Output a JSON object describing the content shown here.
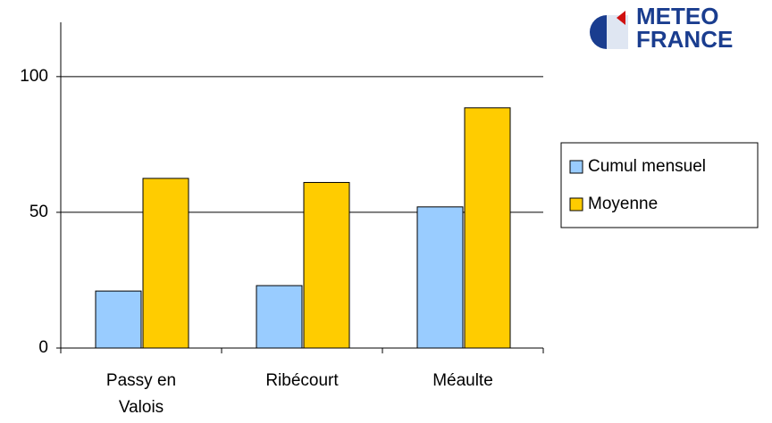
{
  "chart_data": {
    "type": "bar",
    "categories": [
      "Passy en Valois",
      "Ribécourt",
      "Méaulte"
    ],
    "series": [
      {
        "name": "Cumul mensuel",
        "color": "#99ccff",
        "values": [
          21,
          23,
          52
        ]
      },
      {
        "name": "Moyenne",
        "color": "#ffcc00",
        "values": [
          62.5,
          61,
          88.5
        ]
      }
    ],
    "ylim": [
      0,
      120
    ],
    "yticks": [
      0,
      50,
      100
    ],
    "grid": true,
    "legend": "right"
  },
  "logo": {
    "lines": [
      "METEO",
      "FRANCE"
    ]
  }
}
